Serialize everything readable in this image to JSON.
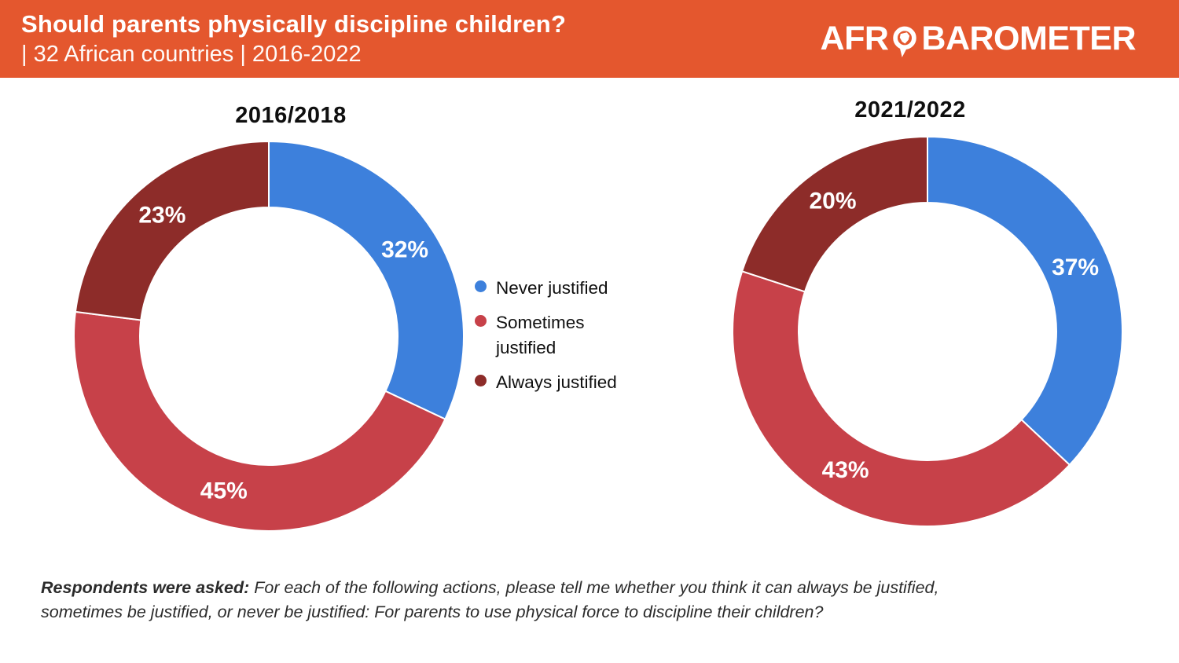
{
  "header": {
    "title": "Should parents physically discipline children?",
    "subtitle": "| 32 African countries | 2016-2022",
    "logo": {
      "left": "AFR",
      "o_icon": "africa-speech-bubble-icon",
      "right": "BAROMETER"
    }
  },
  "colors": {
    "header_bg": "#E4572E",
    "never_justified_blue": "#3D80DC",
    "sometimes_justified_red": "#C74149",
    "always_justified_maroon": "#8D2C29"
  },
  "legend": {
    "items": [
      {
        "label": "Never justified",
        "color": "#3D80DC"
      },
      {
        "label": "Sometimes justified",
        "color": "#C74149"
      },
      {
        "label": "Always justified",
        "color": "#8D2C29"
      }
    ]
  },
  "chart_data": [
    {
      "type": "pie",
      "subtype": "donut",
      "title": "2016/2018",
      "categories": [
        "Never justified",
        "Sometimes justified",
        "Always justified"
      ],
      "values": [
        32,
        45,
        23
      ],
      "colors": [
        "#3D80DC",
        "#C74149",
        "#8D2C29"
      ],
      "label_format": "percent",
      "start_angle_deg": 0,
      "direction": "clockwise",
      "legend_position": "right-of-chart"
    },
    {
      "type": "pie",
      "subtype": "donut",
      "title": "2021/2022",
      "categories": [
        "Never justified",
        "Sometimes justified",
        "Always justified"
      ],
      "values": [
        37,
        43,
        20
      ],
      "colors": [
        "#3D80DC",
        "#C74149",
        "#8D2C29"
      ],
      "label_format": "percent",
      "start_angle_deg": 0,
      "direction": "clockwise",
      "legend_position": "shared"
    }
  ],
  "footer": {
    "prompt_bold": "Respondents were asked:",
    "prompt_line1": " For each of the following actions, please tell me whether you think it can always be justified,",
    "prompt_line2": "sometimes be justified, or never be justified: For parents to use physical force to discipline their children?"
  }
}
